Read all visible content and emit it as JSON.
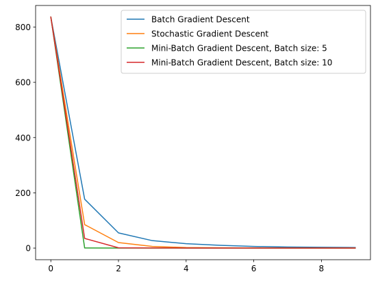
{
  "chart_data": {
    "type": "line",
    "x": [
      0,
      1,
      2,
      3,
      4,
      5,
      6,
      7,
      8,
      9
    ],
    "series": [
      {
        "name": "Batch Gradient Descent",
        "color": "#1f77b4",
        "values": [
          836,
          177,
          55,
          27,
          16,
          10,
          6,
          4,
          3,
          2
        ]
      },
      {
        "name": "Stochastic Gradient Descent",
        "color": "#ff7f0e",
        "values": [
          836,
          85,
          20,
          6,
          2,
          1,
          0.5,
          0.3,
          0.2,
          0.1
        ]
      },
      {
        "name": "Mini-Batch Gradient Descent, Batch size: 5",
        "color": "#2ca02c",
        "values": [
          836,
          0.5,
          0.2,
          0.1,
          0.1,
          0.1,
          0.1,
          0.1,
          0.1,
          0.1
        ]
      },
      {
        "name": "Mini-Batch Gradient Descent, Batch size: 10",
        "color": "#d62728",
        "values": [
          836,
          35,
          1,
          0.5,
          0.3,
          0.2,
          0.1,
          0.1,
          0.1,
          0.1
        ]
      }
    ],
    "title": "",
    "xlabel": "",
    "ylabel": "",
    "xlim": [
      -0.45,
      9.45
    ],
    "ylim": [
      -42,
      878
    ],
    "xticks": [
      0,
      2,
      4,
      6,
      8
    ],
    "yticks": [
      0,
      200,
      400,
      600,
      800
    ],
    "grid": false,
    "legend": "upper right"
  }
}
